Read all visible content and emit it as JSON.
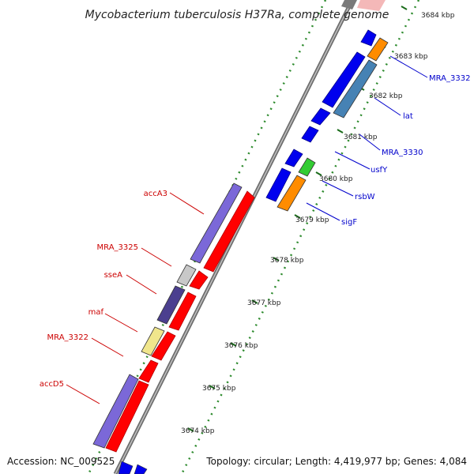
{
  "title": "Mycobacterium tuberculosis H37Ra, complete genome",
  "footer": {
    "accession": "Accession: NC_009525",
    "summary": "Topology: circular; Length: 4,419,977 bp; Genes: 4,084"
  },
  "scale_ticks": [
    "3674 kbp",
    "3675 kbp",
    "3676 kbp",
    "3677 kbp",
    "3678 kbp",
    "3679 kbp",
    "3680 kbp",
    "3681 kbp",
    "3682 kbp",
    "3683 kbp",
    "3684 kbp"
  ],
  "reverse_strand_genes": [
    {
      "label": "accA3",
      "color": "#7b68d8"
    },
    {
      "label": "MRA_3325",
      "color": "#c8c8c8"
    },
    {
      "label": "sseA",
      "color": "#4b3f8f"
    },
    {
      "label": "maf",
      "color": "#f0e68c"
    },
    {
      "label": "MRA_3322",
      "color": "#ff0000"
    },
    {
      "label": "accD5",
      "color": "#7b68d8"
    }
  ],
  "forward_strand_genes": [
    {
      "label": "MRA_3332",
      "color": "#ff8c00"
    },
    {
      "label": "lat",
      "color": "#4682b4"
    },
    {
      "label": "MRA_3330",
      "color": "#0000ee"
    },
    {
      "label": "usfY",
      "color": "#0000ee"
    },
    {
      "label": "rsbW",
      "color": "#33cc33"
    },
    {
      "label": "sigF",
      "color": "#ff8c00"
    }
  ],
  "colors": {
    "forward_cds": "#0000ee",
    "reverse_cds": "#ff0000",
    "forward_label": "#0000cc",
    "reverse_label": "#cc0000",
    "tick_dots": "#2e8b2e",
    "backbone": "#888888"
  }
}
